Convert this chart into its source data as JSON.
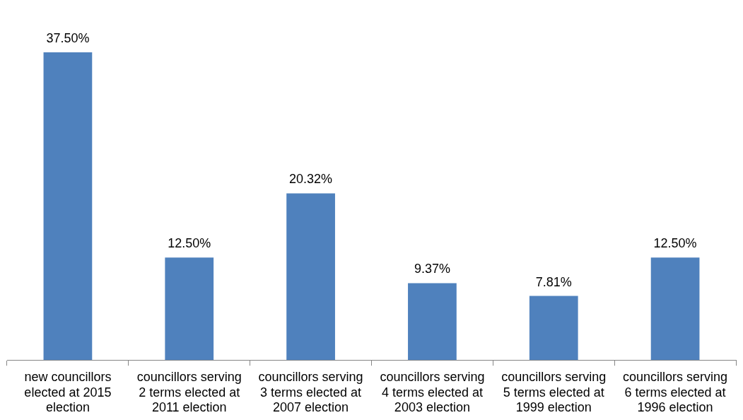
{
  "chart_data": {
    "type": "bar",
    "categories": [
      "new councillors elected at 2015 election",
      "councillors serving 2 terms elected at 2011 election",
      "councillors serving 3 terms elected at 2007 election",
      "councillors serving 4 terms elected at 2003 election",
      "councillors serving 5 terms elected at 1999 election",
      "councillors serving 6 terms elected at 1996 election"
    ],
    "values": [
      37.5,
      12.5,
      20.32,
      9.37,
      7.81,
      12.5
    ],
    "value_labels": [
      "37.50%",
      "12.50%",
      "20.32%",
      "9.37%",
      "7.81%",
      "12.50%"
    ],
    "color": "#4f81bd",
    "grid": false,
    "legend": false
  }
}
